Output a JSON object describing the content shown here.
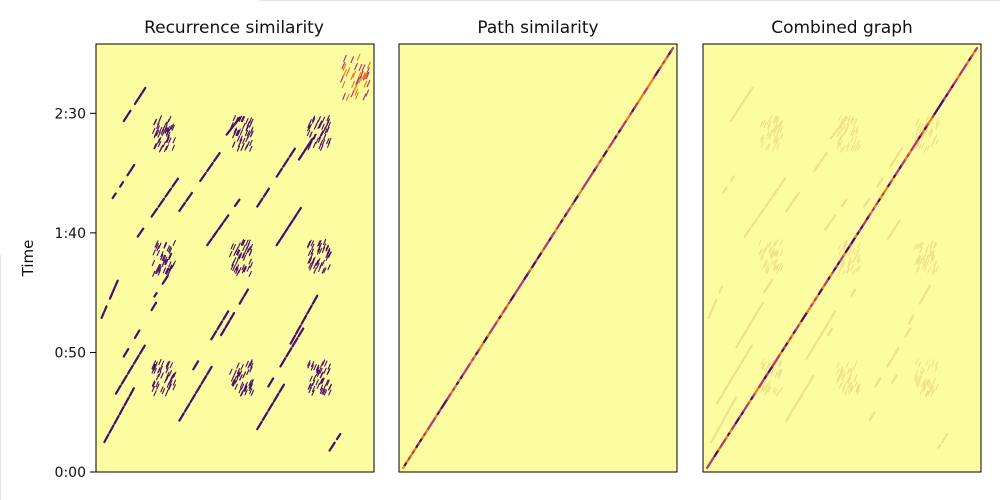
{
  "chart_data": [
    {
      "type": "heatmap",
      "title": "Recurrence similarity",
      "ylabel": "Time",
      "yticks": [
        "0:00",
        "0:50",
        "1:40",
        "2:30"
      ],
      "ytick_values_seconds": [
        0,
        50,
        100,
        150
      ],
      "ylim_seconds": [
        0,
        179
      ],
      "xticks": [],
      "colormap": "inferno",
      "background_color": "#fcfda0",
      "description": "Sparse recurrence matrix: repeated diagonal stripe segments and checkered blocks"
    },
    {
      "type": "heatmap",
      "title": "Path similarity",
      "ylim_seconds": [
        0,
        179
      ],
      "xticks": [],
      "yticks": [],
      "colormap": "inferno",
      "background_color": "#fcfda0",
      "description": "Single main diagonal"
    },
    {
      "type": "heatmap",
      "title": "Combined graph",
      "ylim_seconds": [
        0,
        179
      ],
      "xticks": [],
      "yticks": [],
      "colormap": "inferno",
      "background_color": "#fcfda0",
      "description": "Main diagonal with faint recurrence structure"
    }
  ],
  "colors": {
    "background": "#fcfda0",
    "dark": "#4a0c6b",
    "mid": "#b73779",
    "bright": "#f57d15",
    "faint": "#efe08a"
  }
}
